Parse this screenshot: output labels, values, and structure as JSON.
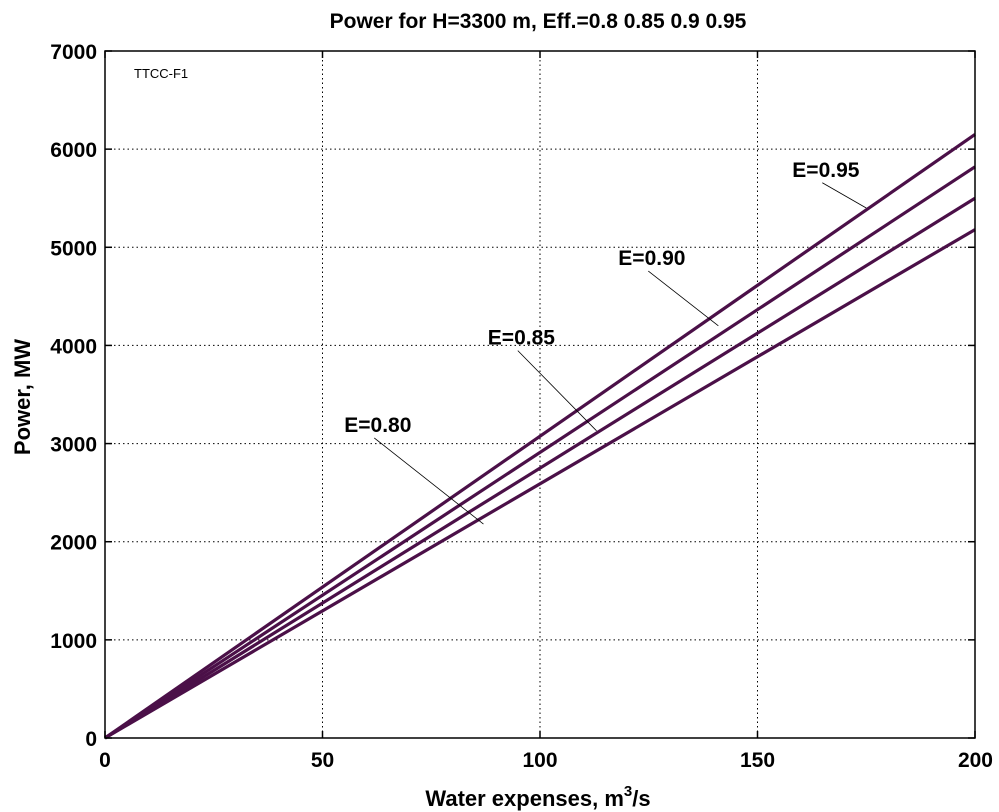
{
  "chart_data": {
    "type": "line",
    "title": "Power for H=3300 m, Eff.=0.8  0.85  0.9  0.95",
    "xlabel": "Water expenses, m",
    "xlabel_superscript": "3",
    "xlabel_suffix": "/s",
    "ylabel": "Power, MW",
    "xlim": [
      0,
      200
    ],
    "ylim": [
      0,
      7000
    ],
    "xticks": [
      0,
      50,
      100,
      150,
      200
    ],
    "yticks": [
      0,
      1000,
      2000,
      3000,
      4000,
      5000,
      6000,
      7000
    ],
    "grid": true,
    "line_color": "#4b1048",
    "tag": "TTCC-F1",
    "series": [
      {
        "name": "E=0.80",
        "x": [
          0,
          200
        ],
        "y": [
          0,
          5180
        ]
      },
      {
        "name": "E=0.85",
        "x": [
          0,
          200
        ],
        "y": [
          0,
          5500
        ]
      },
      {
        "name": "E=0.90",
        "x": [
          0,
          200
        ],
        "y": [
          0,
          5820
        ]
      },
      {
        "name": "E=0.95",
        "x": [
          0,
          200
        ],
        "y": [
          0,
          6150
        ]
      }
    ],
    "annotations": [
      {
        "text": "E=0.80",
        "series": 0,
        "label_at": [
          55,
          3200
        ],
        "point_at": [
          87,
          2180
        ]
      },
      {
        "text": "E=0.85",
        "series": 1,
        "label_at": [
          88,
          4090
        ],
        "point_at": [
          113,
          3130
        ]
      },
      {
        "text": "E=0.90",
        "series": 2,
        "label_at": [
          118,
          4900
        ],
        "point_at": [
          141,
          4200
        ]
      },
      {
        "text": "E=0.95",
        "series": 3,
        "label_at": [
          158,
          5800
        ],
        "point_at": [
          175,
          5400
        ]
      }
    ]
  }
}
